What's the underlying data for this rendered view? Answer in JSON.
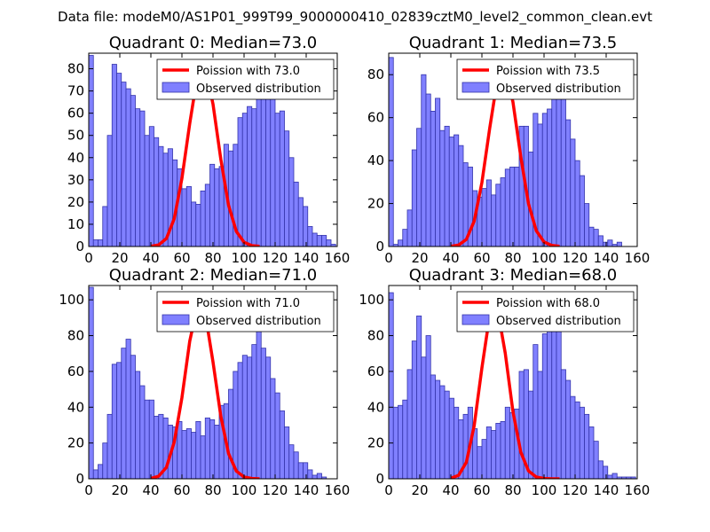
{
  "figure": {
    "suptitle": "Data file: modeM0/AS1P01_999T99_9000000410_02839cztM0_level2_common_clean.evt"
  },
  "colors": {
    "bar_fill": "#8080ff",
    "bar_edge": "#3333aa",
    "poisson_line": "#ff0000",
    "axes": "#000000"
  },
  "chart_data": [
    {
      "type": "bar",
      "title": "Quadrant 0: Median=73.0",
      "xlim": [
        0,
        160
      ],
      "ylim": [
        0,
        87
      ],
      "xticks": [
        0,
        20,
        40,
        60,
        80,
        100,
        120,
        140,
        160
      ],
      "yticks": [
        0,
        10,
        20,
        30,
        40,
        50,
        60,
        70,
        80
      ],
      "legend": [
        "Poission with 73.0",
        "Observed distribution"
      ],
      "bin_start": 0,
      "bin_width": 3,
      "counts": [
        86,
        3,
        3,
        18,
        50,
        82,
        78,
        74,
        71,
        68,
        62,
        61,
        50,
        54,
        49,
        45,
        42,
        44,
        39,
        35,
        26,
        27,
        20,
        19,
        25,
        28,
        37,
        35,
        36,
        46,
        43,
        46,
        58,
        60,
        63,
        62,
        70,
        73,
        72,
        68,
        60,
        61,
        52,
        40,
        29,
        22,
        18,
        9,
        6,
        5,
        5,
        3,
        1
      ],
      "poisson": {
        "mean": 73.0,
        "x": [
          40,
          45,
          50,
          55,
          60,
          65,
          70,
          73,
          75,
          80,
          85,
          90,
          95,
          100,
          105,
          110
        ],
        "y": [
          0.1,
          0.7,
          3.6,
          12.5,
          30.7,
          55.4,
          77.0,
          82.0,
          80.5,
          64.1,
          39.3,
          18.6,
          6.8,
          1.9,
          0.4,
          0.1
        ]
      }
    },
    {
      "type": "bar",
      "title": "Quadrant 1: Median=73.5",
      "xlim": [
        0,
        160
      ],
      "ylim": [
        0,
        90
      ],
      "xticks": [
        0,
        20,
        40,
        60,
        80,
        100,
        120,
        140,
        160
      ],
      "yticks": [
        0,
        20,
        40,
        60,
        80
      ],
      "legend": [
        "Poission with 73.5",
        "Observed distribution"
      ],
      "bin_start": 0,
      "bin_width": 3,
      "counts": [
        88,
        1,
        3,
        8,
        17,
        45,
        55,
        80,
        71,
        63,
        69,
        54,
        56,
        51,
        52,
        47,
        39,
        37,
        26,
        23,
        27,
        31,
        24,
        29,
        32,
        36,
        37,
        37,
        56,
        56,
        44,
        62,
        57,
        62,
        64,
        79,
        81,
        70,
        59,
        50,
        40,
        33,
        20,
        9,
        8,
        5,
        2,
        3,
        1,
        2
      ],
      "poisson": {
        "mean": 73.5,
        "x": [
          40,
          45,
          50,
          55,
          60,
          65,
          70,
          73.5,
          75,
          80,
          85,
          90,
          95,
          100,
          105,
          110
        ],
        "y": [
          0.1,
          0.7,
          3.3,
          11.8,
          29.8,
          55.1,
          77.9,
          85.0,
          83.0,
          67.2,
          41.8,
          19.9,
          7.3,
          2.1,
          0.5,
          0.1
        ]
      }
    },
    {
      "type": "bar",
      "title": "Quadrant 2: Median=71.0",
      "xlim": [
        0,
        160
      ],
      "ylim": [
        0,
        108
      ],
      "xticks": [
        0,
        20,
        40,
        60,
        80,
        100,
        120,
        140,
        160
      ],
      "yticks": [
        0,
        20,
        40,
        60,
        80,
        100
      ],
      "legend": [
        "Poission with 71.0",
        "Observed distribution"
      ],
      "bin_start": 0,
      "bin_width": 3,
      "counts": [
        107,
        5,
        8,
        20,
        36,
        64,
        65,
        73,
        78,
        69,
        60,
        52,
        44,
        44,
        35,
        36,
        34,
        30,
        29,
        32,
        27,
        28,
        26,
        32,
        24,
        34,
        33,
        30,
        41,
        42,
        50,
        60,
        65,
        69,
        68,
        75,
        85,
        73,
        68,
        56,
        48,
        38,
        29,
        19,
        15,
        9,
        9,
        5,
        2,
        3,
        1
      ],
      "poisson": {
        "mean": 71.0,
        "x": [
          40,
          45,
          50,
          55,
          60,
          65,
          70,
          71,
          75,
          80,
          85,
          90,
          95,
          100,
          105,
          110
        ],
        "y": [
          0.2,
          1.5,
          6.4,
          20.5,
          45.4,
          76.9,
          97.0,
          98.0,
          92.2,
          65.3,
          35.0,
          14.1,
          4.3,
          1.0,
          0.2,
          0.0
        ]
      }
    },
    {
      "type": "bar",
      "title": "Quadrant 3: Median=68.0",
      "xlim": [
        0,
        160
      ],
      "ylim": [
        0,
        108
      ],
      "xticks": [
        0,
        20,
        40,
        60,
        80,
        100,
        120,
        140,
        160
      ],
      "yticks": [
        0,
        20,
        40,
        60,
        80,
        100
      ],
      "legend": [
        "Poission with 68.0",
        "Observed distribution"
      ],
      "bin_start": 0,
      "bin_width": 3,
      "counts": [
        104,
        40,
        41,
        44,
        61,
        77,
        91,
        68,
        80,
        58,
        55,
        52,
        49,
        45,
        40,
        33,
        36,
        40,
        28,
        18,
        22,
        29,
        27,
        31,
        32,
        40,
        37,
        39,
        60,
        61,
        49,
        75,
        60,
        81,
        84,
        86,
        98,
        61,
        55,
        46,
        43,
        40,
        36,
        29,
        21,
        10,
        7,
        2,
        3,
        1,
        1,
        1,
        1
      ],
      "poisson": {
        "mean": 68.0,
        "x": [
          40,
          45,
          50,
          55,
          60,
          65,
          68,
          70,
          75,
          80,
          85,
          90,
          95,
          100,
          105,
          110
        ],
        "y": [
          0.3,
          2.0,
          9.3,
          29.7,
          62.0,
          91.4,
          98.0,
          95.0,
          70.2,
          37.5,
          14.9,
          4.4,
          1.0,
          0.2,
          0.0,
          0.0
        ]
      }
    }
  ]
}
